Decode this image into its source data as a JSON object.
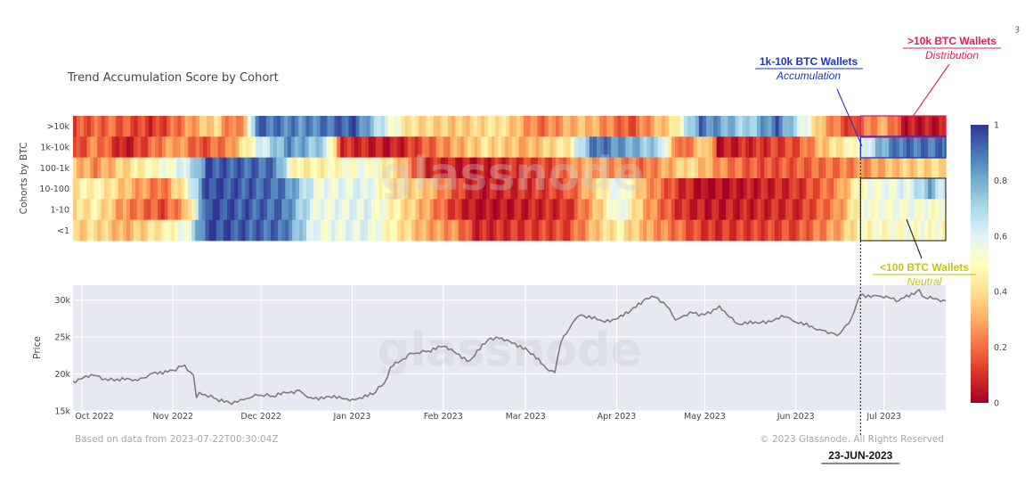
{
  "colors": {
    "accumulation": "#1f35c9",
    "distribution": "#e0205c",
    "neutral": "#c7c21a",
    "scale": [
      "#a50026",
      "#d73027",
      "#f46d43",
      "#fdae61",
      "#fee090",
      "#ffffbf",
      "#e0f3f8",
      "#abd9e9",
      "#74add1",
      "#4575b4",
      "#313695"
    ],
    "price_line": "#7d7d7d",
    "price_bg": "#e6e8f2"
  },
  "chart_data": [
    {
      "type": "heatmap",
      "title": "Trend Accumulation Score by Cohort",
      "ylabel": "Cohorts by BTC",
      "rows": [
        ">10k",
        "1k-10k",
        "100-1k",
        "10-100",
        "1-10",
        "<1"
      ],
      "x_months": [
        "Oct 2022",
        "Nov 2022",
        "Dec 2022",
        "Jan 2023",
        "Feb 2023",
        "Mar 2023",
        "Apr 2023",
        "May 2023",
        "Jun 2023",
        "Jul 2023"
      ],
      "x_range": [
        "2022-09-28",
        "2023-07-22"
      ],
      "colorbar": {
        "min": 0,
        "max": 1,
        "ticks": [
          0,
          0.2,
          0.4,
          0.6,
          0.8,
          1
        ],
        "tick_labels": [
          "0",
          "0.2",
          "0.4",
          "0.6",
          "0.8",
          "1"
        ]
      },
      "segments": {
        ">10k": [
          [
            "2022-09-28",
            0.15
          ],
          [
            "2022-10-10",
            0.2
          ],
          [
            "2022-10-25",
            0.1
          ],
          [
            "2022-11-05",
            0.25
          ],
          [
            "2022-11-15",
            0.4
          ],
          [
            "2022-11-20",
            0.2
          ],
          [
            "2022-11-25",
            0.3
          ],
          [
            "2022-11-29",
            0.92
          ],
          [
            "2022-12-15",
            0.85
          ],
          [
            "2023-01-01",
            0.95
          ],
          [
            "2023-01-12",
            0.6
          ],
          [
            "2023-01-20",
            0.4
          ],
          [
            "2023-02-05",
            0.35
          ],
          [
            "2023-02-20",
            0.42
          ],
          [
            "2023-03-05",
            0.2
          ],
          [
            "2023-03-20",
            0.35
          ],
          [
            "2023-04-05",
            0.15
          ],
          [
            "2023-04-20",
            0.42
          ],
          [
            "2023-04-29",
            0.9
          ],
          [
            "2023-05-15",
            0.7
          ],
          [
            "2023-05-25",
            0.92
          ],
          [
            "2023-06-10",
            0.3
          ],
          [
            "2023-06-20",
            0.1
          ],
          [
            "2023-06-23",
            0.2
          ],
          [
            "2023-07-01",
            0.3
          ],
          [
            "2023-07-08",
            0.05
          ],
          [
            "2023-07-22",
            0.05
          ]
        ],
        "1k-10k": [
          [
            "2022-09-28",
            0.1
          ],
          [
            "2022-10-05",
            0.25
          ],
          [
            "2022-10-15",
            0.05
          ],
          [
            "2022-11-01",
            0.3
          ],
          [
            "2022-11-10",
            0.15
          ],
          [
            "2022-11-20",
            0.25
          ],
          [
            "2022-11-28",
            0.55
          ],
          [
            "2022-12-10",
            0.85
          ],
          [
            "2022-12-22",
            0.7
          ],
          [
            "2022-12-28",
            0.1
          ],
          [
            "2023-01-15",
            0.05
          ],
          [
            "2023-02-01",
            0.25
          ],
          [
            "2023-02-15",
            0.4
          ],
          [
            "2023-03-01",
            0.3
          ],
          [
            "2023-03-15",
            0.45
          ],
          [
            "2023-03-24",
            0.92
          ],
          [
            "2023-04-15",
            0.7
          ],
          [
            "2023-04-22",
            0.15
          ],
          [
            "2023-05-01",
            0.4
          ],
          [
            "2023-05-05",
            0.05
          ],
          [
            "2023-06-01",
            0.15
          ],
          [
            "2023-06-10",
            0.35
          ],
          [
            "2023-06-23",
            0.55
          ],
          [
            "2023-06-28",
            0.75
          ],
          [
            "2023-07-05",
            0.9
          ],
          [
            "2023-07-22",
            0.9
          ]
        ],
        "100-1k": [
          [
            "2022-09-28",
            0.35
          ],
          [
            "2022-10-05",
            0.25
          ],
          [
            "2022-10-20",
            0.45
          ],
          [
            "2022-11-01",
            0.55
          ],
          [
            "2022-11-08",
            0.7
          ],
          [
            "2022-11-12",
            0.95
          ],
          [
            "2022-12-05",
            0.9
          ],
          [
            "2022-12-12",
            0.45
          ],
          [
            "2022-12-20",
            0.45
          ],
          [
            "2023-01-05",
            0.55
          ],
          [
            "2023-01-15",
            0.4
          ],
          [
            "2023-01-25",
            0.1
          ],
          [
            "2023-02-10",
            0.05
          ],
          [
            "2023-03-10",
            0.15
          ],
          [
            "2023-03-20",
            0.3
          ],
          [
            "2023-04-10",
            0.2
          ],
          [
            "2023-04-25",
            0.4
          ],
          [
            "2023-05-05",
            0.25
          ],
          [
            "2023-05-20",
            0.15
          ],
          [
            "2023-06-10",
            0.2
          ],
          [
            "2023-06-23",
            0.25
          ],
          [
            "2023-07-05",
            0.35
          ],
          [
            "2023-07-22",
            0.4
          ]
        ],
        "10-100": [
          [
            "2022-09-28",
            0.42
          ],
          [
            "2022-10-05",
            0.48
          ],
          [
            "2022-10-18",
            0.3
          ],
          [
            "2022-10-28",
            0.2
          ],
          [
            "2022-11-05",
            0.5
          ],
          [
            "2022-11-12",
            0.97
          ],
          [
            "2022-12-08",
            0.9
          ],
          [
            "2022-12-20",
            0.55
          ],
          [
            "2023-01-05",
            0.6
          ],
          [
            "2023-01-15",
            0.4
          ],
          [
            "2023-01-25",
            0.35
          ],
          [
            "2023-02-05",
            0.15
          ],
          [
            "2023-02-12",
            0.05
          ],
          [
            "2023-03-15",
            0.15
          ],
          [
            "2023-03-25",
            0.4
          ],
          [
            "2023-04-01",
            0.6
          ],
          [
            "2023-04-10",
            0.3
          ],
          [
            "2023-04-22",
            0.1
          ],
          [
            "2023-05-01",
            0.02
          ],
          [
            "2023-06-01",
            0.1
          ],
          [
            "2023-06-15",
            0.25
          ],
          [
            "2023-06-23",
            0.52
          ],
          [
            "2023-07-10",
            0.6
          ],
          [
            "2023-07-16",
            0.8
          ],
          [
            "2023-07-22",
            0.55
          ]
        ],
        "1-10": [
          [
            "2022-09-28",
            0.38
          ],
          [
            "2022-10-05",
            0.45
          ],
          [
            "2022-10-15",
            0.25
          ],
          [
            "2022-10-28",
            0.15
          ],
          [
            "2022-11-05",
            0.3
          ],
          [
            "2022-11-12",
            0.97
          ],
          [
            "2022-12-08",
            0.9
          ],
          [
            "2022-12-20",
            0.55
          ],
          [
            "2023-01-05",
            0.6
          ],
          [
            "2023-01-15",
            0.45
          ],
          [
            "2023-01-25",
            0.3
          ],
          [
            "2023-02-05",
            0.1
          ],
          [
            "2023-02-12",
            0.03
          ],
          [
            "2023-03-15",
            0.1
          ],
          [
            "2023-03-25",
            0.35
          ],
          [
            "2023-04-01",
            0.6
          ],
          [
            "2023-04-10",
            0.3
          ],
          [
            "2023-04-22",
            0.1
          ],
          [
            "2023-05-01",
            0.05
          ],
          [
            "2023-06-01",
            0.1
          ],
          [
            "2023-06-15",
            0.25
          ],
          [
            "2023-06-23",
            0.52
          ],
          [
            "2023-07-10",
            0.55
          ],
          [
            "2023-07-22",
            0.5
          ]
        ],
        "<1": [
          [
            "2022-09-28",
            0.35
          ],
          [
            "2022-10-05",
            0.4
          ],
          [
            "2022-10-15",
            0.3
          ],
          [
            "2022-10-28",
            0.45
          ],
          [
            "2022-11-05",
            0.55
          ],
          [
            "2022-11-12",
            0.97
          ],
          [
            "2022-12-08",
            0.9
          ],
          [
            "2022-12-20",
            0.55
          ],
          [
            "2023-01-05",
            0.6
          ],
          [
            "2023-01-15",
            0.45
          ],
          [
            "2023-01-25",
            0.3
          ],
          [
            "2023-02-05",
            0.25
          ],
          [
            "2023-02-12",
            0.08
          ],
          [
            "2023-03-15",
            0.15
          ],
          [
            "2023-03-25",
            0.35
          ],
          [
            "2023-04-01",
            0.45
          ],
          [
            "2023-04-10",
            0.3
          ],
          [
            "2023-04-22",
            0.2
          ],
          [
            "2023-05-01",
            0.1
          ],
          [
            "2023-06-01",
            0.15
          ],
          [
            "2023-06-15",
            0.3
          ],
          [
            "2023-06-23",
            0.48
          ],
          [
            "2023-07-10",
            0.52
          ],
          [
            "2023-07-22",
            0.5
          ]
        ]
      }
    },
    {
      "type": "line",
      "ylabel": "Price",
      "ylim": [
        15000,
        32000
      ],
      "y_ticks": [
        15000,
        20000,
        25000,
        30000
      ],
      "y_tick_labels": [
        "15k",
        "20k",
        "25k",
        "30k"
      ],
      "series": [
        {
          "name": "Price",
          "points": [
            [
              "2022-09-28",
              19000
            ],
            [
              "2022-10-05",
              19800
            ],
            [
              "2022-10-10",
              19100
            ],
            [
              "2022-10-13",
              19300
            ],
            [
              "2022-10-20",
              19100
            ],
            [
              "2022-10-25",
              20100
            ],
            [
              "2022-11-01",
              20500
            ],
            [
              "2022-11-05",
              21200
            ],
            [
              "2022-11-08",
              19800
            ],
            [
              "2022-11-09",
              16800
            ],
            [
              "2022-11-10",
              17500
            ],
            [
              "2022-11-15",
              16700
            ],
            [
              "2022-11-21",
              15900
            ],
            [
              "2022-11-25",
              16500
            ],
            [
              "2022-11-30",
              17100
            ],
            [
              "2022-12-05",
              17000
            ],
            [
              "2022-12-14",
              17800
            ],
            [
              "2022-12-17",
              16800
            ],
            [
              "2022-12-25",
              16800
            ],
            [
              "2023-01-01",
              16600
            ],
            [
              "2023-01-08",
              17200
            ],
            [
              "2023-01-12",
              18800
            ],
            [
              "2023-01-14",
              20900
            ],
            [
              "2023-01-21",
              22800
            ],
            [
              "2023-01-26",
              23000
            ],
            [
              "2023-02-01",
              23700
            ],
            [
              "2023-02-10",
              21800
            ],
            [
              "2023-02-16",
              24500
            ],
            [
              "2023-02-20",
              24800
            ],
            [
              "2023-03-01",
              23500
            ],
            [
              "2023-03-09",
              20400
            ],
            [
              "2023-03-11",
              20200
            ],
            [
              "2023-03-13",
              24200
            ],
            [
              "2023-03-17",
              26900
            ],
            [
              "2023-03-20",
              28000
            ],
            [
              "2023-03-28",
              27000
            ],
            [
              "2023-04-05",
              28200
            ],
            [
              "2023-04-11",
              30200
            ],
            [
              "2023-04-14",
              30400
            ],
            [
              "2023-04-19",
              28800
            ],
            [
              "2023-04-21",
              27300
            ],
            [
              "2023-04-26",
              28400
            ],
            [
              "2023-05-01",
              28000
            ],
            [
              "2023-05-06",
              29200
            ],
            [
              "2023-05-12",
              26800
            ],
            [
              "2023-05-20",
              26900
            ],
            [
              "2023-05-28",
              27700
            ],
            [
              "2023-06-01",
              27000
            ],
            [
              "2023-06-10",
              25900
            ],
            [
              "2023-06-15",
              25200
            ],
            [
              "2023-06-19",
              26800
            ],
            [
              "2023-06-21",
              28600
            ],
            [
              "2023-06-23",
              30700
            ],
            [
              "2023-06-30",
              30500
            ],
            [
              "2023-07-06",
              29900
            ],
            [
              "2023-07-13",
              31400
            ],
            [
              "2023-07-15",
              30300
            ],
            [
              "2023-07-22",
              29900
            ]
          ]
        }
      ],
      "footer_left": "Based on data from 2023-07-22T00:30:04Z",
      "footer_right": "© 2023 Glassnode. All Rights Reserved"
    }
  ],
  "watermark": "glassnode",
  "annotations": {
    "whales_title": ">10k BTC Wallets",
    "whales_sub": "Distribution",
    "mid_title": "1k-10k BTC Wallets",
    "mid_sub": "Accumulation",
    "small_title": "<100 BTC Wallets",
    "small_sub": "Neutral",
    "date_label": "23-JUN-2023",
    "date": "2023-06-23"
  },
  "corner_glyph": "ȝ"
}
